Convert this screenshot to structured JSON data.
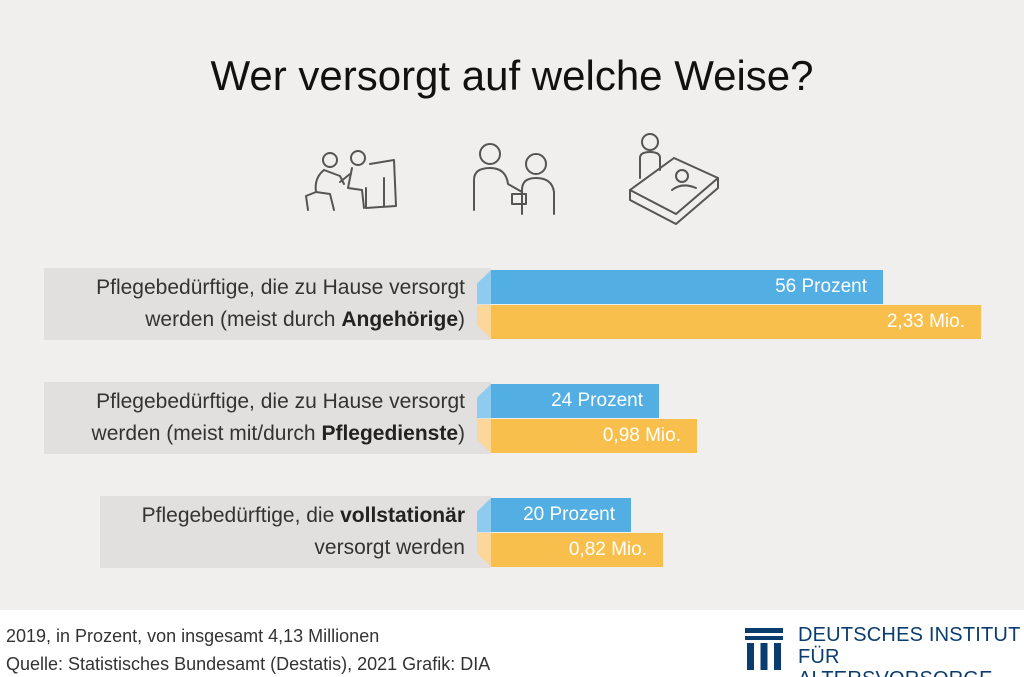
{
  "title": "Wer versorgt auf welche Weise?",
  "colors": {
    "percent_bar": "#52aee3",
    "count_bar": "#f9bf4c",
    "label_bg": "#e2e0de"
  },
  "icons": [
    "home-care-icon",
    "nurse-care-icon",
    "inpatient-bed-icon"
  ],
  "chart_data": {
    "type": "bar",
    "orientation": "horizontal",
    "categories": [
      {
        "label_pre": "Pflegebedürftige, die zu Hause versorgt",
        "label_line2_pre": "werden (meist durch ",
        "label_bold": "Angehörige",
        "label_post": ")"
      },
      {
        "label_pre": "Pflegebedürftige, die zu Hause versorgt",
        "label_line2_pre": "werden (meist mit/durch ",
        "label_bold": "Pflegedienste",
        "label_post": ")"
      },
      {
        "label_pre": "Pflegebedürftige, die ",
        "label_bold": "vollstationär",
        "label_line2": "versorgt werden"
      }
    ],
    "series": [
      {
        "values": [
          56,
          24,
          20
        ],
        "labels": [
          "56 Prozent",
          "24 Prozent",
          "20 Prozent"
        ]
      },
      {
        "values": [
          2.33,
          0.98,
          0.82
        ],
        "labels": [
          "2,33 Mio.",
          "0,98 Mio.",
          "0,82 Mio."
        ]
      }
    ]
  },
  "footer": {
    "note": "2019, in Prozent, von insgesamt 4,13 Millionen",
    "source": "Quelle: Statistisches Bundesamt (Destatis), 2021  Grafik: DIA",
    "logo_line1": "DEUTSCHES INSTITUT",
    "logo_line2": "FÜR ALTERSVORSORGE"
  }
}
